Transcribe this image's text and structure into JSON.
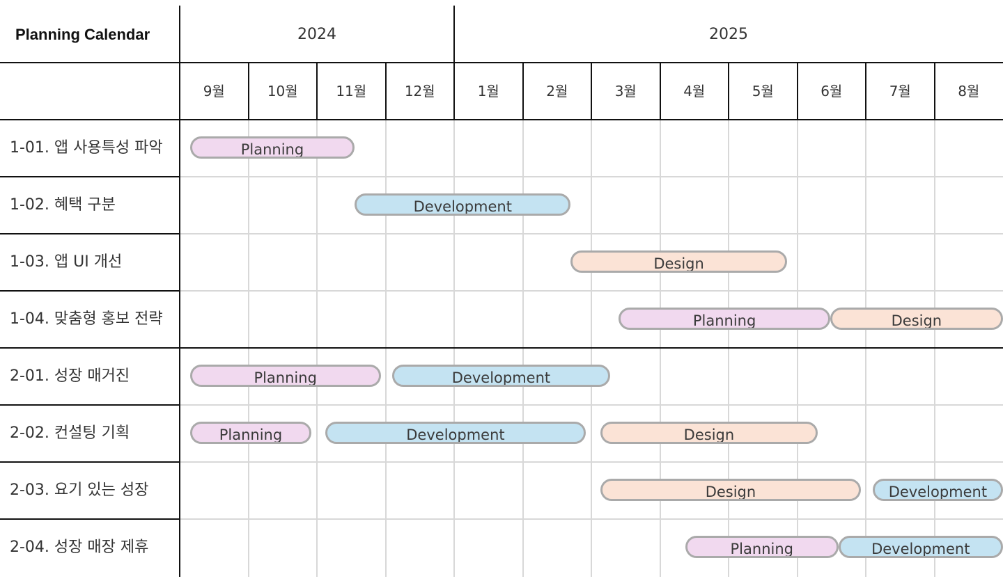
{
  "calendar": {
    "title": "Planning Calendar",
    "years": [
      {
        "label": "2024",
        "months": 4
      },
      {
        "label": "2025",
        "months": 8
      }
    ],
    "months": [
      "9월",
      "10월",
      "11월",
      "12월",
      "1월",
      "2월",
      "3월",
      "4월",
      "5월",
      "6월",
      "7월",
      "8월"
    ],
    "phases": {
      "planning": {
        "label": "Planning",
        "color": "#f1d9ef"
      },
      "development": {
        "label": "Development",
        "color": "#c4e3f2"
      },
      "design": {
        "label": "Design",
        "color": "#fbe3d6"
      }
    },
    "tasks": [
      {
        "label": "1-01. 앱 사용특성 파악",
        "bars": [
          {
            "phase": "planning",
            "start": 0.15,
            "end": 2.55
          }
        ]
      },
      {
        "label": "1-02. 혜택 구분",
        "bars": [
          {
            "phase": "development",
            "start": 2.55,
            "end": 5.7
          }
        ]
      },
      {
        "label": "1-03. 앱 UI 개선",
        "bars": [
          {
            "phase": "design",
            "start": 5.7,
            "end": 8.85
          }
        ]
      },
      {
        "label": "1-04. 맞춤형 홍보 전략",
        "bars": [
          {
            "phase": "planning",
            "start": 6.4,
            "end": 9.48
          },
          {
            "phase": "design",
            "start": 9.48,
            "end": 12.0
          }
        ]
      },
      {
        "label": "2-01. 성장 매거진",
        "bars": [
          {
            "phase": "planning",
            "start": 0.15,
            "end": 2.93
          },
          {
            "phase": "development",
            "start": 3.1,
            "end": 6.27
          }
        ]
      },
      {
        "label": "2-02. 컨설팅 기획",
        "bars": [
          {
            "phase": "planning",
            "start": 0.15,
            "end": 1.92
          },
          {
            "phase": "development",
            "start": 2.12,
            "end": 5.92
          },
          {
            "phase": "design",
            "start": 6.13,
            "end": 9.3
          }
        ]
      },
      {
        "label": "2-03. 요기 있는 성장",
        "bars": [
          {
            "phase": "design",
            "start": 6.13,
            "end": 9.93
          },
          {
            "phase": "development",
            "start": 10.1,
            "end": 12.0
          }
        ]
      },
      {
        "label": "2-04. 성장 매장 제휴",
        "bars": [
          {
            "phase": "planning",
            "start": 7.37,
            "end": 9.6
          },
          {
            "phase": "development",
            "start": 9.6,
            "end": 12.0
          }
        ]
      }
    ]
  }
}
